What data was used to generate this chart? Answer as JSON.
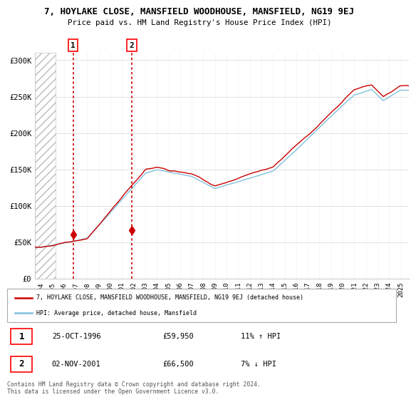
{
  "title_line1": "7, HOYLAKE CLOSE, MANSFIELD WOODHOUSE, MANSFIELD, NG19 9EJ",
  "title_line2": "Price paid vs. HM Land Registry's House Price Index (HPI)",
  "ylabel_ticks": [
    "£0",
    "£50K",
    "£100K",
    "£150K",
    "£200K",
    "£250K",
    "£300K"
  ],
  "ytick_values": [
    0,
    50000,
    100000,
    150000,
    200000,
    250000,
    300000
  ],
  "ylim": [
    0,
    310000
  ],
  "purchase1_x": 1996.79,
  "purchase1_y": 59950,
  "purchase2_x": 2001.84,
  "purchase2_y": 66500,
  "legend_line1": "7, HOYLAKE CLOSE, MANSFIELD WOODHOUSE, MANSFIELD, NG19 9EJ (detached house)",
  "legend_line2": "HPI: Average price, detached house, Mansfield",
  "footer": "Contains HM Land Registry data © Crown copyright and database right 2024.\nThis data is licensed under the Open Government Licence v3.0.",
  "hpi_color": "#7fbfdd",
  "price_color": "#cc0000",
  "xlim_start": 1993.5,
  "xlim_end": 2025.7,
  "hatch_end": 1995.3,
  "xtick_years": [
    1994,
    1995,
    1996,
    1997,
    1998,
    1999,
    2000,
    2001,
    2002,
    2003,
    2004,
    2005,
    2006,
    2007,
    2008,
    2009,
    2010,
    2011,
    2012,
    2013,
    2014,
    2015,
    2016,
    2017,
    2018,
    2019,
    2020,
    2021,
    2022,
    2023,
    2024,
    2025
  ]
}
